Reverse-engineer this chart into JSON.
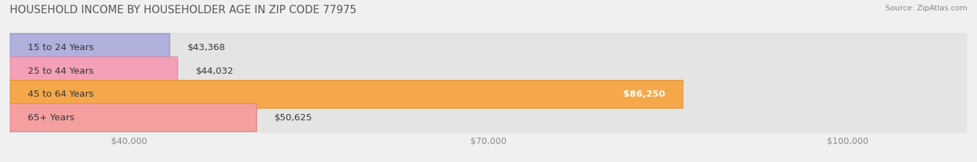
{
  "title": "HOUSEHOLD INCOME BY HOUSEHOLDER AGE IN ZIP CODE 77975",
  "source": "Source: ZipAtlas.com",
  "categories": [
    "15 to 24 Years",
    "25 to 44 Years",
    "45 to 64 Years",
    "65+ Years"
  ],
  "values": [
    43368,
    44032,
    86250,
    50625
  ],
  "bar_colors": [
    "#b0b0dc",
    "#f4a0b8",
    "#f5a84a",
    "#f4a0a0"
  ],
  "bar_edge_colors": [
    "#9090c8",
    "#e080a0",
    "#e09030",
    "#e08080"
  ],
  "label_colors": [
    "#444444",
    "#444444",
    "#ffffff",
    "#444444"
  ],
  "value_labels": [
    "$43,368",
    "$44,032",
    "$86,250",
    "$50,625"
  ],
  "xlim_min": 30000,
  "xlim_max": 110000,
  "xticks": [
    40000,
    70000,
    100000
  ],
  "xtick_labels": [
    "$40,000",
    "$70,000",
    "$100,000"
  ],
  "background_color": "#f0f0f0",
  "bar_background_color": "#e4e4e4",
  "title_fontsize": 11,
  "source_fontsize": 8,
  "label_fontsize": 9.5,
  "tick_fontsize": 9
}
